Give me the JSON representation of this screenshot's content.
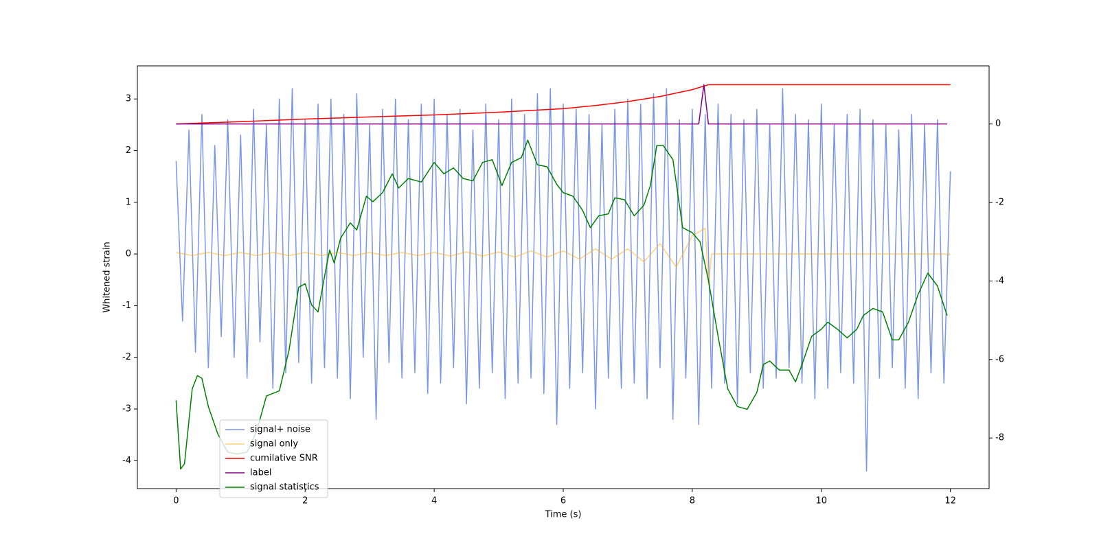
{
  "chart_data": {
    "type": "line",
    "xlabel": "Time (s)",
    "ylabel": "Whitened strain",
    "xlim": [
      -0.6,
      12.6
    ],
    "xticks": [
      0,
      2,
      4,
      6,
      8,
      10,
      12
    ],
    "ylim": [
      -4.54,
      3.64
    ],
    "yticks": [
      -4,
      -3,
      -2,
      -1,
      0,
      1,
      2,
      3
    ],
    "y2lim": [
      -9.29,
      1.48
    ],
    "y2ticks": [
      -8,
      -6,
      -4,
      -2,
      0
    ],
    "grid": false,
    "legend": "lower left",
    "series": [
      {
        "name": "signal+ noise",
        "color": "#4169e1",
        "alpha": 0.7,
        "x": [
          0,
          0.1,
          0.2,
          0.3,
          0.4,
          0.5,
          0.6,
          0.7,
          0.8,
          0.9,
          1,
          1.1,
          1.2,
          1.3,
          1.4,
          1.5,
          1.6,
          1.7,
          1.8,
          1.9,
          2,
          2.1,
          2.2,
          2.3,
          2.4,
          2.5,
          2.6,
          2.7,
          2.8,
          2.9,
          3,
          3.1,
          3.2,
          3.3,
          3.4,
          3.5,
          3.6,
          3.7,
          3.8,
          3.9,
          4,
          4.1,
          4.2,
          4.3,
          4.4,
          4.5,
          4.6,
          4.7,
          4.8,
          4.9,
          5,
          5.1,
          5.2,
          5.3,
          5.4,
          5.5,
          5.6,
          5.7,
          5.8,
          5.9,
          6,
          6.1,
          6.2,
          6.3,
          6.4,
          6.5,
          6.6,
          6.7,
          6.8,
          6.9,
          7,
          7.1,
          7.2,
          7.3,
          7.4,
          7.5,
          7.6,
          7.7,
          7.8,
          7.9,
          8,
          8.1,
          8.2,
          8.3,
          8.4,
          8.5,
          8.6,
          8.7,
          8.8,
          8.9,
          9,
          9.1,
          9.2,
          9.3,
          9.4,
          9.5,
          9.6,
          9.7,
          9.8,
          9.9,
          10,
          10.1,
          10.2,
          10.3,
          10.4,
          10.5,
          10.6,
          10.7,
          10.8,
          10.9,
          11,
          11.1,
          11.2,
          11.3,
          11.4,
          11.5,
          11.6,
          11.7,
          11.8,
          11.9,
          12
        ],
        "values": [
          1.8,
          -1.3,
          2.4,
          -1.9,
          2.7,
          -2.2,
          2.1,
          -1.6,
          2.6,
          -2.0,
          2.3,
          -2.4,
          2.8,
          -1.7,
          2.5,
          -2.6,
          3.0,
          -2.3,
          3.2,
          -2.1,
          2.6,
          -2.5,
          2.9,
          -2.2,
          3.0,
          -2.4,
          2.7,
          -2.8,
          3.1,
          -2.0,
          2.5,
          -3.2,
          2.8,
          -2.1,
          3.0,
          -2.4,
          2.6,
          -2.3,
          2.9,
          -2.7,
          3.0,
          -2.5,
          2.7,
          -2.2,
          2.8,
          -2.9,
          2.4,
          -2.6,
          2.9,
          -2.3,
          2.6,
          -2.8,
          3.0,
          -2.5,
          2.7,
          -2.4,
          3.1,
          -2.7,
          3.2,
          -3.3,
          2.9,
          -2.6,
          2.8,
          -2.3,
          2.7,
          -3.0,
          2.5,
          -2.4,
          2.8,
          -2.6,
          3.0,
          -2.5,
          2.9,
          -2.8,
          3.1,
          -2.2,
          3.2,
          -3.2,
          2.6,
          -2.4,
          2.8,
          -3.3,
          2.7,
          -2.6,
          2.9,
          -2.5,
          2.7,
          -2.9,
          2.6,
          -2.3,
          2.8,
          -2.6,
          2.5,
          -2.4,
          3.2,
          -2.2,
          2.7,
          -2.5,
          2.6,
          -2.8,
          2.9,
          -2.6,
          2.5,
          -2.3,
          2.7,
          -2.5,
          2.8,
          -4.2,
          2.6,
          -2.4,
          2.5,
          -2.2,
          2.4,
          -2.6,
          2.7,
          -2.8,
          2.5,
          -2.3,
          2.6,
          -2.5,
          1.6
        ]
      },
      {
        "name": "signal only",
        "color": "#ffa500",
        "alpha": 0.5,
        "x": [
          0,
          0.25,
          0.5,
          0.75,
          1,
          1.25,
          1.5,
          1.75,
          2,
          2.25,
          2.5,
          2.75,
          3,
          3.25,
          3.5,
          3.75,
          4,
          4.25,
          4.5,
          4.75,
          5,
          5.25,
          5.5,
          5.75,
          6,
          6.25,
          6.5,
          6.75,
          7,
          7.25,
          7.5,
          7.75,
          8,
          8.2,
          8.25,
          8.3,
          12
        ],
        "values": [
          0.03,
          -0.03,
          0.03,
          -0.03,
          0.03,
          -0.03,
          0.03,
          -0.03,
          0.03,
          -0.03,
          0.03,
          -0.03,
          0.03,
          -0.03,
          0.03,
          -0.03,
          0.03,
          -0.04,
          0.04,
          -0.04,
          0.04,
          -0.06,
          0.06,
          -0.06,
          0.06,
          -0.1,
          0.1,
          -0.1,
          0.1,
          -0.15,
          0.2,
          -0.25,
          0.35,
          0.5,
          -0.6,
          0,
          0
        ]
      },
      {
        "name": "cumilative SNR",
        "color": "#ff0000",
        "axis": "y2",
        "x": [
          0,
          1,
          2,
          3,
          4,
          5,
          6,
          6.5,
          7,
          7.5,
          8,
          8.25,
          12
        ],
        "values": [
          0,
          0.06,
          0.125,
          0.18,
          0.23,
          0.3,
          0.39,
          0.47,
          0.57,
          0.7,
          0.875,
          1.0,
          1.0
        ]
      },
      {
        "name": "label",
        "color": "#800080",
        "axis": "y2",
        "x": [
          0,
          8.1,
          8.18,
          8.25,
          11.95
        ],
        "values": [
          0,
          0,
          1.0,
          0,
          0
        ]
      },
      {
        "name": "signal statistics",
        "color": "#008000",
        "axis": "y2",
        "x": [
          0,
          0.07,
          0.13,
          0.25,
          0.33,
          0.4,
          0.5,
          0.65,
          0.8,
          0.95,
          1.1,
          1.25,
          1.4,
          1.6,
          1.75,
          1.9,
          2.0,
          2.1,
          2.2,
          2.3,
          2.38,
          2.45,
          2.55,
          2.7,
          2.8,
          2.95,
          3.05,
          3.2,
          3.35,
          3.45,
          3.6,
          3.8,
          4.0,
          4.15,
          4.3,
          4.45,
          4.6,
          4.75,
          4.9,
          5.05,
          5.2,
          5.35,
          5.45,
          5.6,
          5.75,
          5.9,
          6.0,
          6.15,
          6.3,
          6.42,
          6.55,
          6.7,
          6.8,
          6.95,
          7.1,
          7.25,
          7.35,
          7.45,
          7.55,
          7.7,
          7.85,
          8.0,
          8.12,
          8.25,
          8.4,
          8.55,
          8.7,
          8.85,
          9.0,
          9.1,
          9.2,
          9.35,
          9.5,
          9.6,
          9.7,
          9.85,
          10.0,
          10.1,
          10.25,
          10.4,
          10.55,
          10.65,
          10.8,
          10.95,
          11.1,
          11.2,
          11.35,
          11.5,
          11.65,
          11.8,
          11.95
        ],
        "values": [
          -7.04,
          -8.79,
          -8.66,
          -6.75,
          -6.41,
          -6.48,
          -7.2,
          -7.91,
          -8.36,
          -8.41,
          -8.36,
          -7.82,
          -6.93,
          -6.8,
          -5.77,
          -4.16,
          -4.07,
          -4.61,
          -4.79,
          -3.89,
          -3.21,
          -3.54,
          -2.91,
          -2.52,
          -2.7,
          -1.84,
          -1.98,
          -1.75,
          -1.27,
          -1.63,
          -1.39,
          -1.48,
          -0.98,
          -1.27,
          -1.12,
          -1.39,
          -1.45,
          -0.98,
          -0.91,
          -1.57,
          -0.98,
          -0.86,
          -0.41,
          -1.04,
          -1.09,
          -1.54,
          -1.75,
          -1.84,
          -2.2,
          -2.64,
          -2.34,
          -2.29,
          -1.88,
          -1.93,
          -2.34,
          -2.07,
          -1.57,
          -0.55,
          -0.55,
          -0.91,
          -2.64,
          -2.77,
          -3.0,
          -3.98,
          -5.41,
          -6.75,
          -7.2,
          -7.27,
          -6.84,
          -6.13,
          -6.04,
          -6.27,
          -6.27,
          -6.57,
          -6.13,
          -5.41,
          -5.23,
          -5.05,
          -5.23,
          -5.45,
          -5.23,
          -4.88,
          -4.7,
          -4.79,
          -5.5,
          -5.5,
          -5.05,
          -4.34,
          -3.8,
          -4.13,
          -4.88
        ]
      }
    ]
  }
}
